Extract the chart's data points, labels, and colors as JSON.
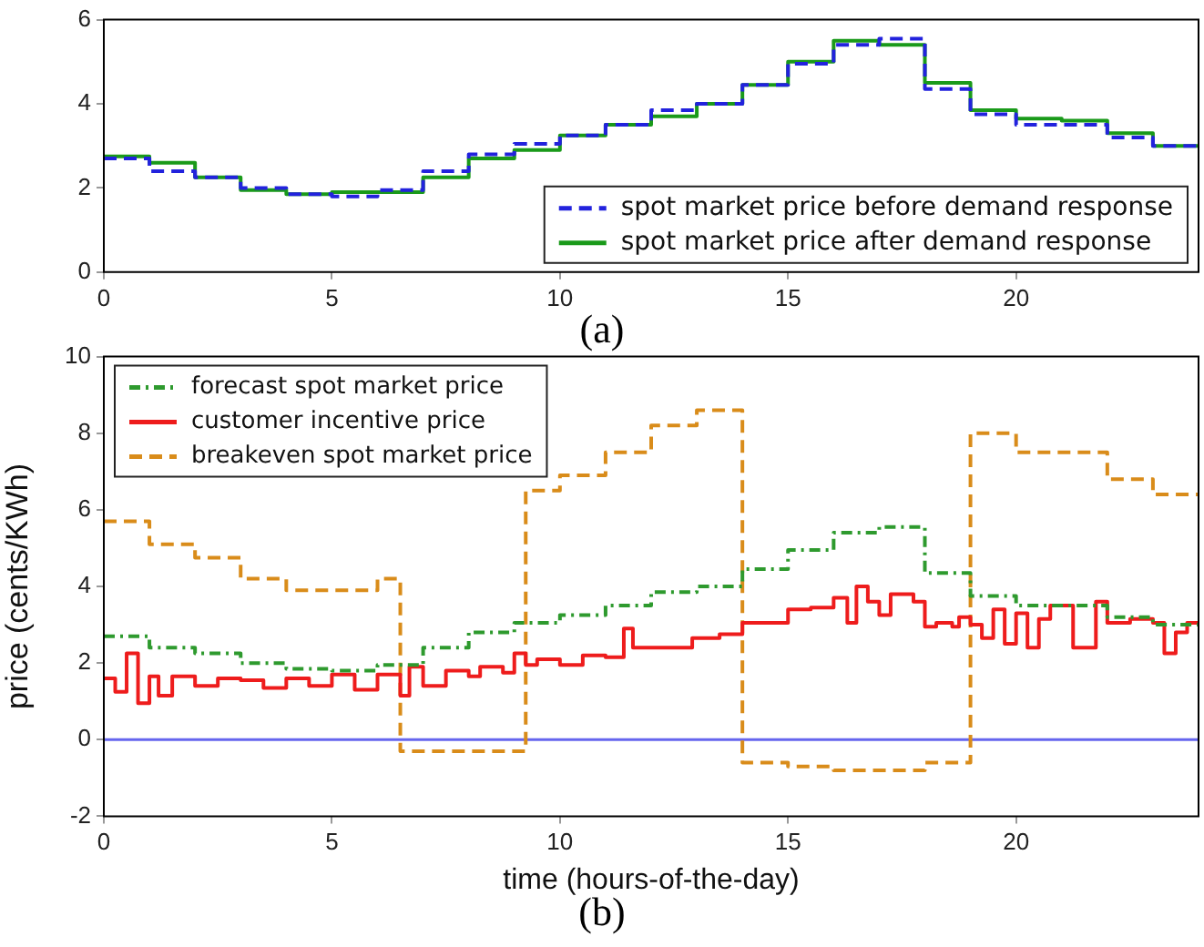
{
  "chart_data": [
    {
      "type": "step",
      "annotations": [
        "(a)"
      ],
      "xlim": [
        0,
        24
      ],
      "xticks": [
        0,
        5,
        10,
        15,
        20
      ],
      "ylim": [
        0,
        6
      ],
      "yticks": [
        0,
        2,
        4,
        6
      ],
      "grid": false,
      "legend": "bottom right",
      "marker": "none",
      "x": [
        0,
        1,
        2,
        3,
        4,
        5,
        6,
        7,
        8,
        9,
        10,
        11,
        12,
        13,
        14,
        15,
        16,
        17,
        18,
        19,
        20,
        21,
        22,
        23,
        24
      ],
      "series": [
        {
          "name": "spot market price before demand response",
          "color": "#2222dd",
          "line_style": "dashed",
          "values": [
            2.7,
            2.4,
            2.25,
            2.0,
            1.85,
            1.8,
            1.95,
            2.4,
            2.8,
            3.05,
            3.25,
            3.5,
            3.85,
            4.0,
            4.45,
            4.95,
            5.4,
            5.55,
            4.35,
            3.75,
            3.5,
            3.5,
            3.2,
            3.0,
            3.0
          ]
        },
        {
          "name": "spot market price after demand response",
          "color": "#1a9a1a",
          "line_style": "solid",
          "values": [
            2.75,
            2.6,
            2.25,
            1.95,
            1.85,
            1.9,
            1.9,
            2.25,
            2.7,
            2.9,
            3.25,
            3.5,
            3.7,
            4.0,
            4.45,
            5.0,
            5.5,
            5.4,
            4.5,
            3.85,
            3.65,
            3.6,
            3.3,
            3.0,
            3.0
          ]
        }
      ]
    },
    {
      "type": "step",
      "xlabel": "time (hours-of-the-day)",
      "ylabel": "price (cents/KWh)",
      "annotations": [
        "(b)"
      ],
      "xlim": [
        0,
        24
      ],
      "xticks": [
        0,
        5,
        10,
        15,
        20
      ],
      "ylim": [
        -2,
        10
      ],
      "yticks": [
        -2,
        0,
        2,
        4,
        6,
        8,
        10
      ],
      "grid": false,
      "legend": "top left",
      "marker": "none",
      "ref_lines": [
        {
          "axis": "y",
          "value": 0,
          "color": "#6666ee"
        }
      ],
      "series": [
        {
          "name": "forecast spot market price",
          "color": "#2e9a2e",
          "line_style": "dotted",
          "x": [
            0,
            1,
            2,
            3,
            4,
            5,
            6,
            7,
            8,
            9,
            10,
            11,
            12,
            13,
            14,
            15,
            16,
            17,
            18,
            19,
            20,
            21,
            22,
            23,
            24
          ],
          "values": [
            2.7,
            2.4,
            2.25,
            2.0,
            1.85,
            1.8,
            1.95,
            2.4,
            2.8,
            3.05,
            3.25,
            3.5,
            3.85,
            4.0,
            4.45,
            4.95,
            5.4,
            5.55,
            4.35,
            3.75,
            3.5,
            3.5,
            3.2,
            3.0,
            3.0
          ]
        },
        {
          "name": "customer incentive price",
          "color": "#ee1c1c",
          "line_style": "solid",
          "x": [
            0,
            0.25,
            0.5,
            0.75,
            1,
            1.2,
            1.5,
            2,
            2.5,
            3,
            3.5,
            4,
            4.5,
            5,
            5.5,
            6,
            6.5,
            6.7,
            7,
            7.5,
            8,
            8.25,
            8.75,
            9,
            9.25,
            9.5,
            10,
            10.5,
            11,
            11.4,
            11.6,
            12.9,
            13.5,
            14,
            15,
            15.5,
            16,
            16.3,
            16.5,
            16.75,
            17,
            17.25,
            17.75,
            18,
            18.25,
            18.6,
            18.75,
            19,
            19.25,
            19.5,
            19.75,
            20,
            20.25,
            20.5,
            20.75,
            21.25,
            21.75,
            22,
            22.5,
            23,
            23.25,
            23.5,
            23.75,
            24
          ],
          "values": [
            1.6,
            1.25,
            2.25,
            0.95,
            1.65,
            1.15,
            1.65,
            1.4,
            1.6,
            1.55,
            1.35,
            1.6,
            1.4,
            1.7,
            1.3,
            1.7,
            1.15,
            1.9,
            1.4,
            1.8,
            1.65,
            1.9,
            1.75,
            2.25,
            1.95,
            2.1,
            1.95,
            2.2,
            2.15,
            2.9,
            2.4,
            2.65,
            2.75,
            3.05,
            3.4,
            3.45,
            3.7,
            3.05,
            4.0,
            3.6,
            3.25,
            3.8,
            3.6,
            2.95,
            3.05,
            2.95,
            3.2,
            3.0,
            2.65,
            3.4,
            2.5,
            3.3,
            2.4,
            3.15,
            3.5,
            2.4,
            3.6,
            3.05,
            3.15,
            3.05,
            2.25,
            2.8,
            3.05,
            3.05
          ]
        },
        {
          "name": "breakeven spot market price",
          "color": "#d98c1a",
          "line_style": "dashed",
          "x": [
            0,
            1,
            2,
            3,
            4,
            6,
            6.5,
            9.25,
            10,
            11,
            12,
            13,
            14,
            15,
            16,
            18,
            19,
            20,
            22,
            23,
            24
          ],
          "values": [
            5.7,
            5.1,
            4.75,
            4.2,
            3.9,
            4.2,
            -0.3,
            6.5,
            6.9,
            7.5,
            8.2,
            8.6,
            -0.6,
            -0.7,
            -0.8,
            -0.6,
            8.0,
            7.5,
            6.8,
            6.4,
            6.4
          ]
        }
      ]
    }
  ]
}
